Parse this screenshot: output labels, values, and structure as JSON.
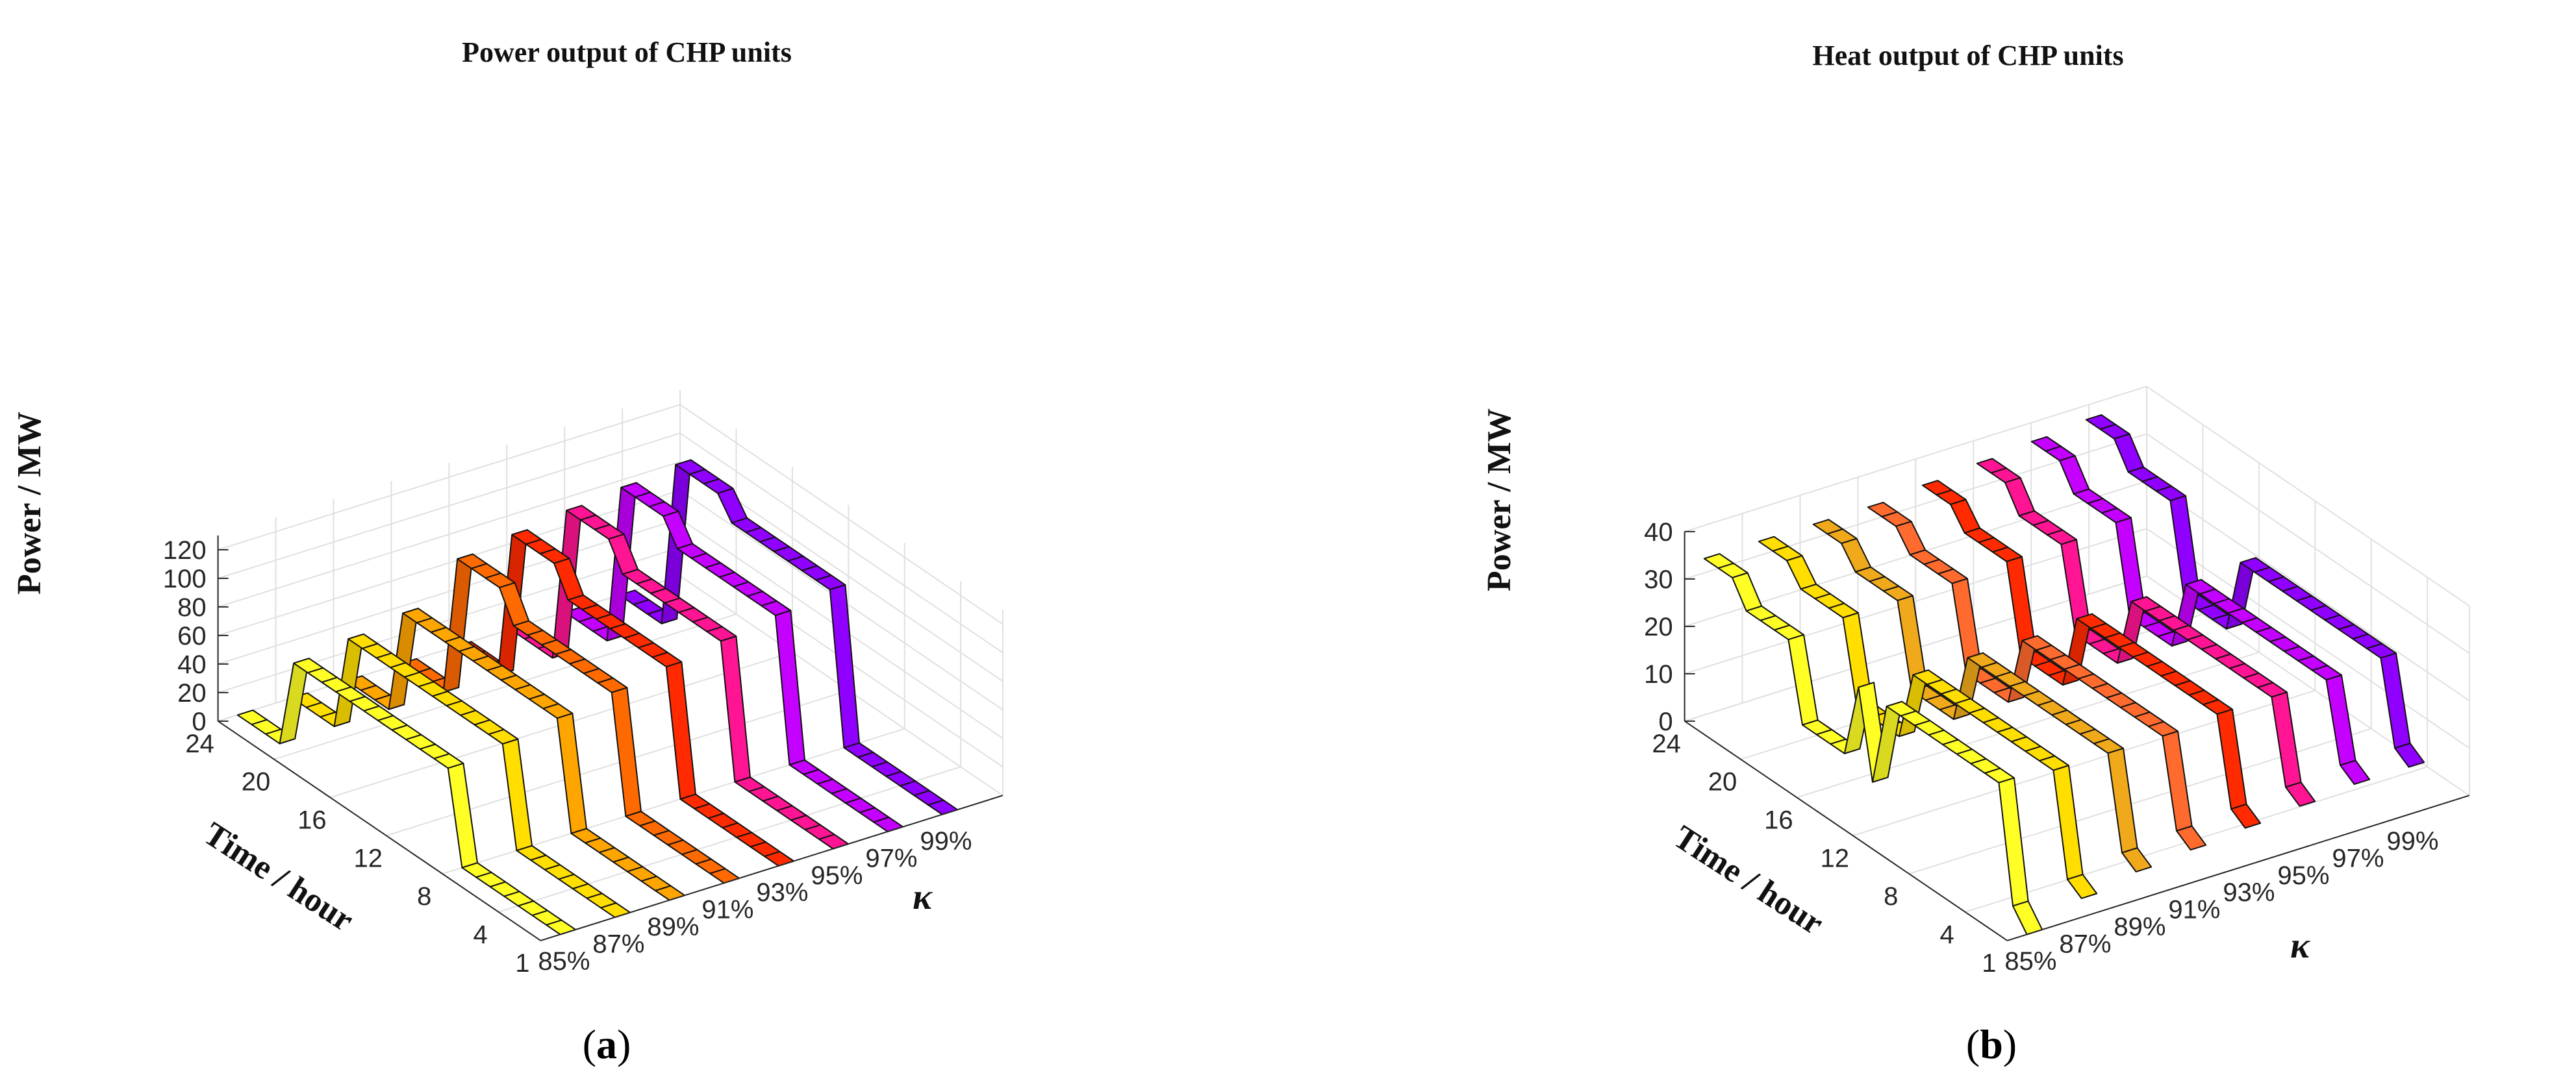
{
  "chart_data": [
    {
      "type": "3d-ribbon",
      "panel_label": "a",
      "title": "Power output of CHP units",
      "zlabel": "Power / MW",
      "ylabel": "Time / hour",
      "xlabel": "κ",
      "zlim": [
        0,
        130
      ],
      "z_ticks": [
        "0",
        "20",
        "40",
        "60",
        "80",
        "100",
        "120"
      ],
      "time_ticks": [
        "1",
        "4",
        "8",
        "12",
        "16",
        "20",
        "24"
      ],
      "kappa_ticks": [
        "85%",
        "87%",
        "89%",
        "91%",
        "93%",
        "95%",
        "97%",
        "99%"
      ],
      "hours": [
        1,
        2,
        3,
        4,
        5,
        6,
        7,
        8,
        9,
        10,
        11,
        12,
        13,
        14,
        15,
        16,
        17,
        18,
        19,
        20,
        21,
        22,
        23,
        24
      ],
      "series": [
        {
          "name": "85%",
          "color": "#ffff26",
          "values": [
            0,
            0,
            0,
            0,
            0,
            0,
            0,
            0,
            63,
            63,
            63,
            63,
            63,
            63,
            63,
            63,
            63,
            63,
            63,
            63,
            0,
            0,
            0,
            0
          ]
        },
        {
          "name": "87%",
          "color": "#ffde00",
          "values": [
            0,
            0,
            0,
            0,
            0,
            0,
            0,
            0,
            68,
            68,
            68,
            68,
            68,
            68,
            68,
            68,
            68,
            68,
            68,
            68,
            0,
            0,
            0,
            0
          ]
        },
        {
          "name": "89%",
          "color": "#ffa500",
          "values": [
            0,
            0,
            0,
            0,
            0,
            0,
            0,
            0,
            74,
            74,
            74,
            74,
            74,
            74,
            74,
            74,
            74,
            74,
            74,
            74,
            0,
            0,
            0,
            0
          ]
        },
        {
          "name": "91%",
          "color": "#ff6a00",
          "values": [
            0,
            0,
            0,
            0,
            0,
            0,
            0,
            0,
            80,
            80,
            80,
            80,
            80,
            80,
            80,
            80,
            100,
            100,
            100,
            100,
            0,
            0,
            0,
            0
          ]
        },
        {
          "name": "93%",
          "color": "#ff2a00",
          "values": [
            0,
            0,
            0,
            0,
            0,
            0,
            0,
            0,
            86,
            86,
            86,
            86,
            86,
            86,
            86,
            86,
            105,
            105,
            105,
            105,
            0,
            0,
            0,
            0
          ]
        },
        {
          "name": "95%",
          "color": "#ff1493",
          "values": [
            0,
            0,
            0,
            0,
            0,
            0,
            0,
            0,
            92,
            92,
            92,
            92,
            92,
            92,
            92,
            92,
            110,
            110,
            110,
            110,
            0,
            0,
            0,
            0
          ]
        },
        {
          "name": "97%",
          "color": "#c400ff",
          "values": [
            0,
            0,
            0,
            0,
            0,
            0,
            0,
            0,
            98,
            98,
            98,
            98,
            98,
            98,
            98,
            98,
            114,
            114,
            114,
            114,
            0,
            0,
            0,
            0
          ]
        },
        {
          "name": "99%",
          "color": "#9000ff",
          "values": [
            0,
            0,
            0,
            0,
            0,
            0,
            0,
            0,
            104,
            104,
            104,
            104,
            104,
            104,
            104,
            104,
            118,
            118,
            118,
            118,
            0,
            0,
            0,
            0
          ]
        }
      ]
    },
    {
      "type": "3d-ribbon",
      "panel_label": "b",
      "title": "Heat output of CHP units",
      "zlabel": "Power / MW",
      "ylabel": "Time / hour",
      "xlabel": "κ",
      "zlim": [
        0,
        40
      ],
      "z_ticks": [
        "0",
        "10",
        "20",
        "30",
        "40"
      ],
      "time_ticks": [
        "1",
        "4",
        "8",
        "12",
        "16",
        "20",
        "24"
      ],
      "kappa_ticks": [
        "85%",
        "87%",
        "89%",
        "91%",
        "93%",
        "95%",
        "97%",
        "99%"
      ],
      "hours": [
        1,
        2,
        3,
        4,
        5,
        6,
        7,
        8,
        9,
        10,
        11,
        12,
        13,
        14,
        15,
        16,
        17,
        18,
        19,
        20,
        21,
        22,
        23,
        24
      ],
      "series": [
        {
          "name": "85%",
          "color": "#ffff26",
          "values": [
            0,
            4,
            28,
            28,
            28,
            28,
            28,
            28,
            28,
            28,
            28,
            10,
            28,
            12,
            12,
            12,
            12,
            28,
            28,
            28,
            28,
            33,
            33,
            33
          ]
        },
        {
          "name": "87%",
          "color": "#ffde00",
          "values": [
            4,
            6,
            27,
            27,
            27,
            27,
            27,
            27,
            27,
            27,
            27,
            27,
            27,
            12,
            12,
            12,
            12,
            29,
            29,
            29,
            29,
            33,
            33,
            33
          ]
        },
        {
          "name": "89%",
          "color": "#f0a91a",
          "values": [
            6,
            8,
            27,
            27,
            27,
            27,
            27,
            27,
            27,
            27,
            27,
            27,
            27,
            12,
            12,
            12,
            12,
            29,
            29,
            29,
            29,
            33,
            33,
            33
          ]
        },
        {
          "name": "91%",
          "color": "#ff6a2e",
          "values": [
            7,
            9,
            27,
            27,
            27,
            27,
            27,
            27,
            27,
            27,
            27,
            27,
            27,
            12,
            12,
            12,
            12,
            29,
            29,
            29,
            29,
            33,
            33,
            33
          ]
        },
        {
          "name": "93%",
          "color": "#ff2a00",
          "values": [
            8,
            10,
            28,
            28,
            28,
            28,
            28,
            28,
            28,
            28,
            28,
            28,
            28,
            12,
            12,
            12,
            12,
            30,
            30,
            30,
            30,
            34,
            34,
            34
          ]
        },
        {
          "name": "95%",
          "color": "#ff1493",
          "values": [
            9,
            11,
            28,
            28,
            28,
            28,
            28,
            28,
            28,
            28,
            28,
            28,
            28,
            13,
            13,
            13,
            13,
            30,
            30,
            30,
            30,
            35,
            35,
            35
          ]
        },
        {
          "name": "97%",
          "color": "#c400ff",
          "values": [
            10,
            12,
            28,
            28,
            28,
            28,
            28,
            28,
            28,
            28,
            28,
            28,
            28,
            13,
            13,
            13,
            13,
            31,
            31,
            31,
            31,
            36,
            36,
            36
          ]
        },
        {
          "name": "99%",
          "color": "#9000ff",
          "values": [
            10,
            12,
            29,
            29,
            29,
            29,
            29,
            29,
            29,
            29,
            29,
            29,
            29,
            13,
            13,
            13,
            13,
            32,
            32,
            32,
            32,
            37,
            37,
            37
          ]
        }
      ]
    }
  ]
}
